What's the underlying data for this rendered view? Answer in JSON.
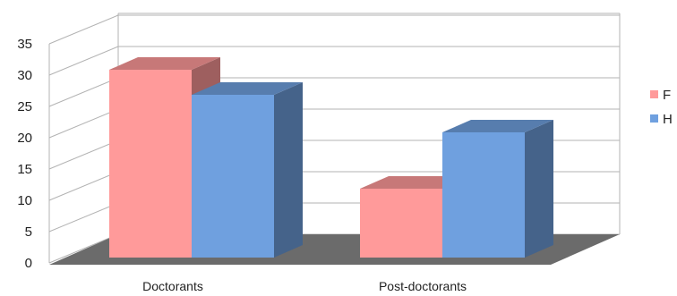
{
  "chart_data": {
    "type": "bar",
    "title": "",
    "xlabel": "",
    "ylabel": "",
    "categories": [
      "Doctorants",
      "Post-doctorants"
    ],
    "series": [
      {
        "name": "F",
        "values": [
          30,
          11
        ]
      },
      {
        "name": "H",
        "values": [
          26,
          20
        ]
      }
    ],
    "ylim": [
      0,
      35
    ],
    "yticks": [
      0,
      5,
      10,
      15,
      20,
      25,
      30,
      35
    ],
    "grid": true,
    "legend": "right",
    "style": "3d-clustered-column"
  },
  "colors": {
    "F": "#ff9a9a",
    "H": "#6fa0df",
    "floor": "#6b6b6b",
    "grid": "#b3b3b3"
  }
}
